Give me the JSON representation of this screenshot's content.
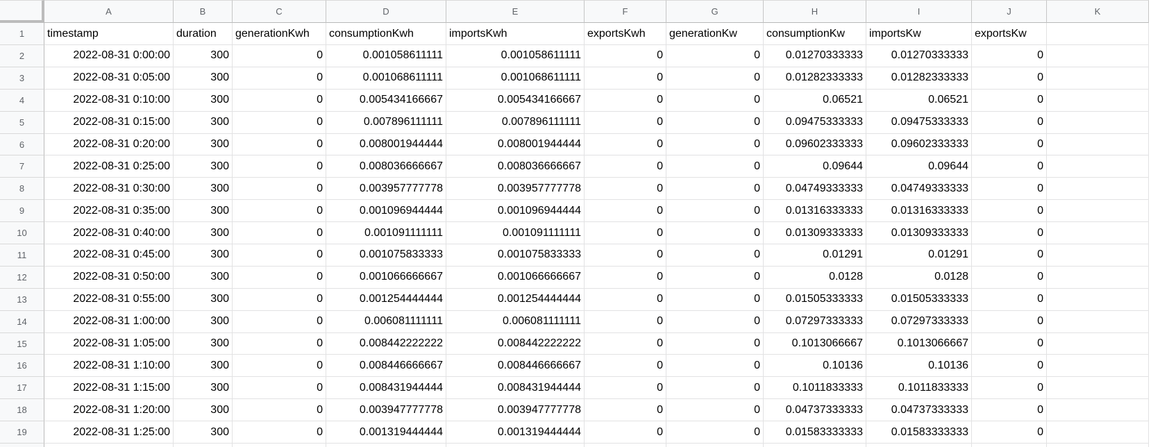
{
  "app": {
    "type": "spreadsheet-grid"
  },
  "colors": {
    "header_bg": "#f8f9fa",
    "header_text": "#5f6368",
    "cell_text": "#000000",
    "grid_line": "#e2e2e3",
    "header_border": "#c6c6c6",
    "corner_border": "#bcbcbc"
  },
  "sheet": {
    "col_letters": [
      "A",
      "B",
      "C",
      "D",
      "E",
      "F",
      "G",
      "H",
      "I",
      "J",
      "K"
    ],
    "rows": [
      {
        "num": "1",
        "cells": [
          "timestamp",
          "duration",
          "generationKwh",
          "consumptionKwh",
          "importsKwh",
          "exportsKwh",
          "generationKw",
          "consumptionKw",
          "importsKw",
          "exportsKw",
          ""
        ]
      },
      {
        "num": "2",
        "cells": [
          "2022-08-31 0:00:00",
          "300",
          "0",
          "0.001058611111",
          "0.001058611111",
          "0",
          "0",
          "0.01270333333",
          "0.01270333333",
          "0",
          ""
        ]
      },
      {
        "num": "3",
        "cells": [
          "2022-08-31 0:05:00",
          "300",
          "0",
          "0.001068611111",
          "0.001068611111",
          "0",
          "0",
          "0.01282333333",
          "0.01282333333",
          "0",
          ""
        ]
      },
      {
        "num": "4",
        "cells": [
          "2022-08-31 0:10:00",
          "300",
          "0",
          "0.005434166667",
          "0.005434166667",
          "0",
          "0",
          "0.06521",
          "0.06521",
          "0",
          ""
        ]
      },
      {
        "num": "5",
        "cells": [
          "2022-08-31 0:15:00",
          "300",
          "0",
          "0.007896111111",
          "0.007896111111",
          "0",
          "0",
          "0.09475333333",
          "0.09475333333",
          "0",
          ""
        ]
      },
      {
        "num": "6",
        "cells": [
          "2022-08-31 0:20:00",
          "300",
          "0",
          "0.008001944444",
          "0.008001944444",
          "0",
          "0",
          "0.09602333333",
          "0.09602333333",
          "0",
          ""
        ]
      },
      {
        "num": "7",
        "cells": [
          "2022-08-31 0:25:00",
          "300",
          "0",
          "0.008036666667",
          "0.008036666667",
          "0",
          "0",
          "0.09644",
          "0.09644",
          "0",
          ""
        ]
      },
      {
        "num": "8",
        "cells": [
          "2022-08-31 0:30:00",
          "300",
          "0",
          "0.003957777778",
          "0.003957777778",
          "0",
          "0",
          "0.04749333333",
          "0.04749333333",
          "0",
          ""
        ]
      },
      {
        "num": "9",
        "cells": [
          "2022-08-31 0:35:00",
          "300",
          "0",
          "0.001096944444",
          "0.001096944444",
          "0",
          "0",
          "0.01316333333",
          "0.01316333333",
          "0",
          ""
        ]
      },
      {
        "num": "10",
        "cells": [
          "2022-08-31 0:40:00",
          "300",
          "0",
          "0.001091111111",
          "0.001091111111",
          "0",
          "0",
          "0.01309333333",
          "0.01309333333",
          "0",
          ""
        ]
      },
      {
        "num": "11",
        "cells": [
          "2022-08-31 0:45:00",
          "300",
          "0",
          "0.001075833333",
          "0.001075833333",
          "0",
          "0",
          "0.01291",
          "0.01291",
          "0",
          ""
        ]
      },
      {
        "num": "12",
        "cells": [
          "2022-08-31 0:50:00",
          "300",
          "0",
          "0.001066666667",
          "0.001066666667",
          "0",
          "0",
          "0.0128",
          "0.0128",
          "0",
          ""
        ]
      },
      {
        "num": "13",
        "cells": [
          "2022-08-31 0:55:00",
          "300",
          "0",
          "0.001254444444",
          "0.001254444444",
          "0",
          "0",
          "0.01505333333",
          "0.01505333333",
          "0",
          ""
        ]
      },
      {
        "num": "14",
        "cells": [
          "2022-08-31 1:00:00",
          "300",
          "0",
          "0.006081111111",
          "0.006081111111",
          "0",
          "0",
          "0.07297333333",
          "0.07297333333",
          "0",
          ""
        ]
      },
      {
        "num": "15",
        "cells": [
          "2022-08-31 1:05:00",
          "300",
          "0",
          "0.008442222222",
          "0.008442222222",
          "0",
          "0",
          "0.1013066667",
          "0.1013066667",
          "0",
          ""
        ]
      },
      {
        "num": "16",
        "cells": [
          "2022-08-31 1:10:00",
          "300",
          "0",
          "0.008446666667",
          "0.008446666667",
          "0",
          "0",
          "0.10136",
          "0.10136",
          "0",
          ""
        ]
      },
      {
        "num": "17",
        "cells": [
          "2022-08-31 1:15:00",
          "300",
          "0",
          "0.008431944444",
          "0.008431944444",
          "0",
          "0",
          "0.1011833333",
          "0.1011833333",
          "0",
          ""
        ]
      },
      {
        "num": "18",
        "cells": [
          "2022-08-31 1:20:00",
          "300",
          "0",
          "0.003947777778",
          "0.003947777778",
          "0",
          "0",
          "0.04737333333",
          "0.04737333333",
          "0",
          ""
        ]
      },
      {
        "num": "19",
        "cells": [
          "2022-08-31 1:25:00",
          "300",
          "0",
          "0.001319444444",
          "0.001319444444",
          "0",
          "0",
          "0.01583333333",
          "0.01583333333",
          "0",
          ""
        ]
      }
    ]
  }
}
